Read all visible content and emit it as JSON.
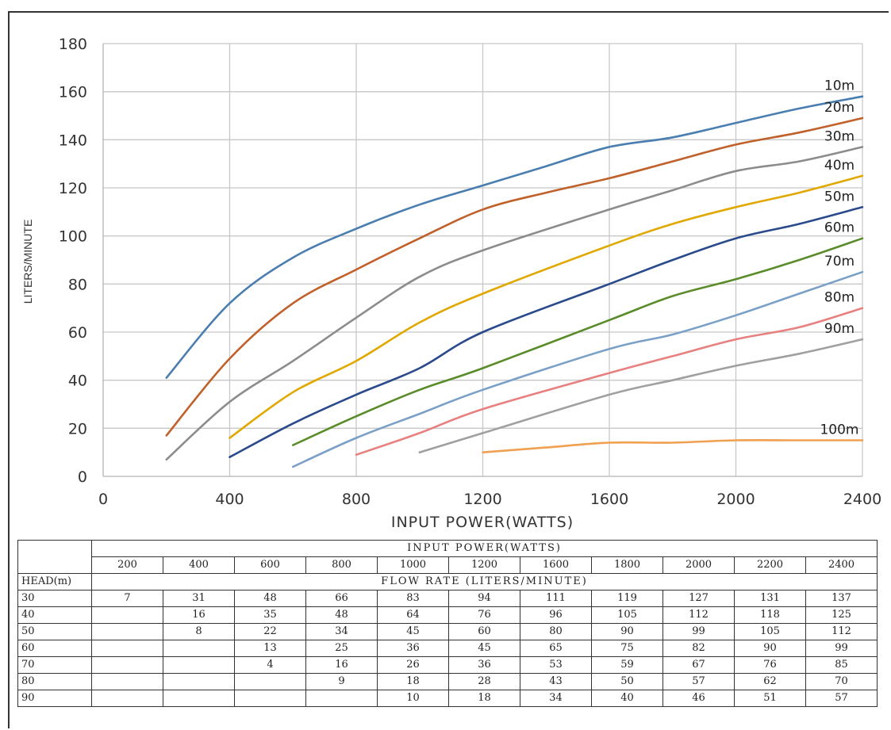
{
  "chart_data": {
    "type": "line",
    "xlabel": "INPUT POWER(WATTS)",
    "ylabel": "LITERS/MINUTE",
    "xlim": [
      0,
      2400
    ],
    "ylim": [
      0,
      180
    ],
    "xticks": [
      "0",
      "400",
      "800",
      "1200",
      "1600",
      "2000",
      "2400"
    ],
    "yticks": [
      "0",
      "20",
      "40",
      "60",
      "80",
      "100",
      "120",
      "140",
      "160",
      "180"
    ],
    "grid": true,
    "series": [
      {
        "name": "10m",
        "color": "#4a7eb0",
        "x": [
          200,
          400,
          600,
          800,
          1000,
          1200,
          1400,
          1600,
          1800,
          2000,
          2200,
          2400
        ],
        "y": [
          41,
          72,
          91,
          103,
          113,
          121,
          129,
          137,
          141,
          147,
          153,
          158
        ]
      },
      {
        "name": "20m",
        "color": "#c0602a",
        "x": [
          200,
          400,
          600,
          800,
          1000,
          1200,
          1400,
          1600,
          1800,
          2000,
          2200,
          2400
        ],
        "y": [
          17,
          49,
          72,
          86,
          99,
          111,
          118,
          124,
          131,
          138,
          143,
          149
        ]
      },
      {
        "name": "30m",
        "color": "#8c8c8c",
        "x": [
          200,
          400,
          600,
          800,
          1000,
          1200,
          1600,
          1800,
          2000,
          2200,
          2400
        ],
        "y": [
          7,
          31,
          48,
          66,
          83,
          94,
          111,
          119,
          127,
          131,
          137
        ]
      },
      {
        "name": "40m",
        "color": "#e0a800",
        "x": [
          400,
          600,
          800,
          1000,
          1200,
          1600,
          1800,
          2000,
          2200,
          2400
        ],
        "y": [
          16,
          35,
          48,
          64,
          76,
          96,
          105,
          112,
          118,
          125
        ]
      },
      {
        "name": "50m",
        "color": "#2a4a8c",
        "x": [
          400,
          600,
          800,
          1000,
          1200,
          1600,
          1800,
          2000,
          2200,
          2400
        ],
        "y": [
          8,
          22,
          34,
          45,
          60,
          80,
          90,
          99,
          105,
          112
        ]
      },
      {
        "name": "60m",
        "color": "#5a8c2a",
        "x": [
          600,
          800,
          1000,
          1200,
          1600,
          1800,
          2000,
          2200,
          2400
        ],
        "y": [
          13,
          25,
          36,
          45,
          65,
          75,
          82,
          90,
          99
        ]
      },
      {
        "name": "70m",
        "color": "#7aa0c8",
        "x": [
          600,
          800,
          1000,
          1200,
          1600,
          1800,
          2000,
          2200,
          2400
        ],
        "y": [
          4,
          16,
          26,
          36,
          53,
          59,
          67,
          76,
          85
        ]
      },
      {
        "name": "80m",
        "color": "#e88080",
        "x": [
          800,
          1000,
          1200,
          1600,
          1800,
          2000,
          2200,
          2400
        ],
        "y": [
          9,
          18,
          28,
          43,
          50,
          57,
          62,
          70
        ]
      },
      {
        "name": "90m",
        "color": "#a0a0a0",
        "x": [
          1000,
          1200,
          1600,
          1800,
          2000,
          2200,
          2400
        ],
        "y": [
          10,
          18,
          34,
          40,
          46,
          51,
          57
        ]
      },
      {
        "name": "100m",
        "color": "#f0a050",
        "x": [
          1200,
          1400,
          1600,
          1800,
          2000,
          2200,
          2400
        ],
        "y": [
          10,
          12,
          14,
          14,
          15,
          15,
          15
        ]
      }
    ]
  },
  "table": {
    "top_header": "INPUT  POWER(WATTS)",
    "row_header_label": "HEAD(m)",
    "sub_header": "FLOW RATE (LITERS/MINUTE)",
    "powers": [
      "200",
      "400",
      "600",
      "800",
      "1000",
      "1200",
      "1600",
      "1800",
      "2000",
      "2200",
      "2400"
    ],
    "rows": [
      {
        "head": "30",
        "values": [
          "7",
          "31",
          "48",
          "66",
          "83",
          "94",
          "111",
          "119",
          "127",
          "131",
          "137"
        ]
      },
      {
        "head": "40",
        "values": [
          "",
          "16",
          "35",
          "48",
          "64",
          "76",
          "96",
          "105",
          "112",
          "118",
          "125"
        ]
      },
      {
        "head": "50",
        "values": [
          "",
          "8",
          "22",
          "34",
          "45",
          "60",
          "80",
          "90",
          "99",
          "105",
          "112"
        ]
      },
      {
        "head": "60",
        "values": [
          "",
          "",
          "13",
          "25",
          "36",
          "45",
          "65",
          "75",
          "82",
          "90",
          "99"
        ]
      },
      {
        "head": "70",
        "values": [
          "",
          "",
          "4",
          "16",
          "26",
          "36",
          "53",
          "59",
          "67",
          "76",
          "85"
        ]
      },
      {
        "head": "80",
        "values": [
          "",
          "",
          "",
          "9",
          "18",
          "28",
          "43",
          "50",
          "57",
          "62",
          "70"
        ]
      },
      {
        "head": "90",
        "values": [
          "",
          "",
          "",
          "",
          "10",
          "18",
          "34",
          "40",
          "46",
          "51",
          "57"
        ]
      }
    ]
  }
}
